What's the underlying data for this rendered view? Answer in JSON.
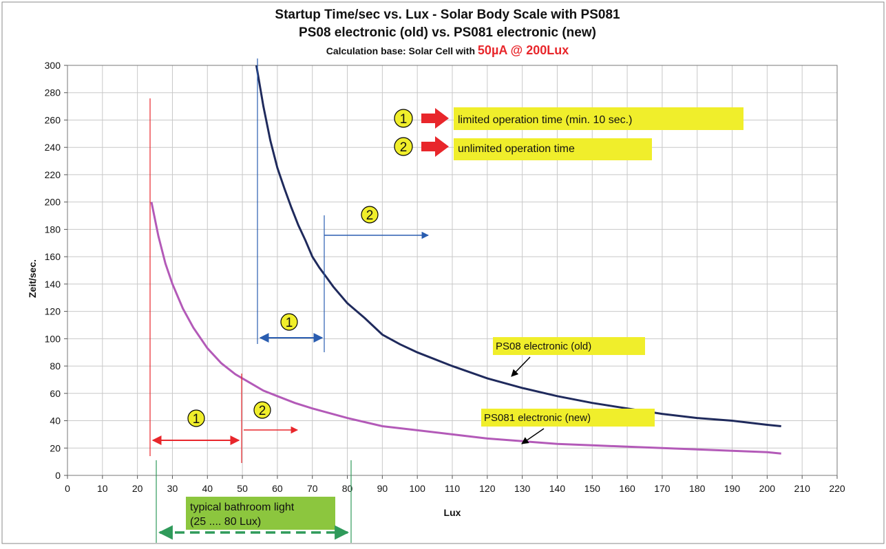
{
  "chart_data": {
    "type": "line",
    "title": "Startup Time/sec vs. Lux - Solar Body Scale with PS081",
    "subtitle": "PS08 electronic (old) vs. PS081 electronic (new)",
    "subtitle2_prefix": "Calculation base: Solar Cell with ",
    "subtitle2_highlight": "50µA @ 200Lux",
    "xlabel": "Lux",
    "ylabel": "Zeit/sec.",
    "xlim": [
      0,
      220
    ],
    "ylim": [
      0,
      300
    ],
    "x_ticks": [
      0,
      10,
      20,
      30,
      40,
      50,
      60,
      70,
      80,
      90,
      100,
      110,
      120,
      130,
      140,
      150,
      160,
      170,
      180,
      190,
      200,
      210,
      220
    ],
    "y_ticks": [
      0,
      20,
      40,
      60,
      80,
      100,
      120,
      140,
      160,
      180,
      200,
      220,
      240,
      260,
      280,
      300
    ],
    "grid": true,
    "series": [
      {
        "name": "PS08 electronic (old)",
        "color": "#1f2a5c",
        "x": [
          54,
          56,
          58,
          60,
          62,
          64,
          66,
          68,
          70,
          72,
          74,
          76,
          78,
          80,
          85,
          90,
          95,
          100,
          110,
          120,
          130,
          140,
          150,
          160,
          170,
          180,
          190,
          200,
          204
        ],
        "y": [
          300,
          270,
          245,
          225,
          210,
          196,
          183,
          172,
          160,
          152,
          145,
          138,
          132,
          126,
          115,
          103,
          96,
          90,
          80,
          71,
          64,
          58,
          53,
          49,
          45,
          42,
          40,
          37,
          36
        ]
      },
      {
        "name": "PS081 electronic (new)",
        "color": "#b35ab8",
        "x": [
          24,
          26,
          28,
          30,
          33,
          36,
          40,
          44,
          48,
          52,
          56,
          60,
          65,
          70,
          80,
          90,
          100,
          110,
          120,
          130,
          140,
          150,
          160,
          170,
          180,
          190,
          200,
          204
        ],
        "y": [
          200,
          175,
          155,
          140,
          122,
          108,
          93,
          82,
          74,
          68,
          62,
          58,
          53,
          49,
          42,
          36,
          33,
          30,
          27,
          25,
          23,
          22,
          21,
          20,
          19,
          18,
          17,
          16
        ]
      }
    ],
    "legend_notes": [
      {
        "num": "1",
        "text": "limited operation time (min. 10 sec.)"
      },
      {
        "num": "2",
        "text": "unlimited operation time"
      }
    ],
    "series_labels": {
      "old": "PS08 electronic (old)",
      "new": "PS081 electronic (new)"
    },
    "bathroom_label_line1": "typical bathroom light",
    "bathroom_label_line2": "(25 .... 80 Lux)",
    "range_markers": {
      "blue_1": "1",
      "blue_2": "2",
      "red_1": "1",
      "red_2": "2"
    },
    "colors": {
      "note_highlight": "#f0ee2b",
      "bathroom_fill": "#8cc63e",
      "bathroom_arrow": "#2f9a5a",
      "red": "#e8262b",
      "blue": "#2a5db0",
      "grid": "#c8c8c8"
    }
  }
}
